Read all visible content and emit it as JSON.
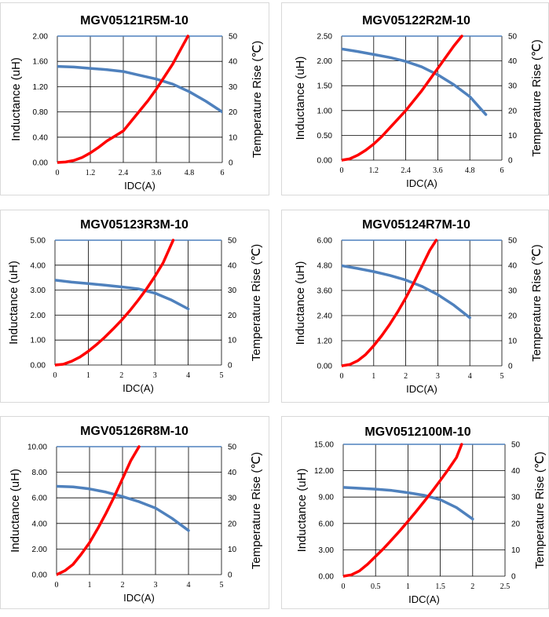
{
  "chart_data": [
    {
      "type": "line",
      "title": "MGV05121R5M-10",
      "xlabel": "IDC(A)",
      "ylabel": "Inductance (uH)",
      "y2label": "Temperature Rise (℃)",
      "xlim": [
        0,
        6
      ],
      "xticks": [
        "0",
        "1.2",
        "2.4",
        "3.6",
        "4.8",
        "6"
      ],
      "ylim": [
        0,
        2
      ],
      "yticks": [
        "0.00",
        "0.40",
        "0.80",
        "1.20",
        "1.60",
        "2.00"
      ],
      "y2lim": [
        0,
        50
      ],
      "y2ticks": [
        "0",
        "10",
        "20",
        "30",
        "40",
        "50"
      ],
      "series": [
        {
          "name": "Inductance",
          "axis": "left",
          "color": "#4f81bd",
          "x": [
            0,
            0.6,
            1.2,
            1.8,
            2.4,
            3.0,
            3.6,
            4.2,
            4.8,
            5.4,
            6.0
          ],
          "y": [
            1.52,
            1.51,
            1.49,
            1.47,
            1.44,
            1.38,
            1.32,
            1.24,
            1.12,
            0.97,
            0.8
          ]
        },
        {
          "name": "Temperature Rise",
          "axis": "right",
          "color": "#ff0000",
          "x": [
            0,
            0.3,
            0.6,
            0.9,
            1.2,
            1.5,
            1.8,
            2.1,
            2.4,
            2.7,
            3.0,
            3.3,
            3.6,
            3.9,
            4.2,
            4.5,
            4.75
          ],
          "y": [
            0,
            0.2,
            0.8,
            2.0,
            3.8,
            6.0,
            8.5,
            10.5,
            12.5,
            16.5,
            20.5,
            24.5,
            29.0,
            34.0,
            39.0,
            45.0,
            50.0
          ]
        }
      ]
    },
    {
      "type": "line",
      "title": "MGV05122R2M-10",
      "xlabel": "IDC(A)",
      "ylabel": "Inductance (uH)",
      "y2label": "Temperature Rise (℃)",
      "xlim": [
        0,
        6
      ],
      "xticks": [
        "0",
        "1.2",
        "2.4",
        "3.6",
        "4.8",
        "6"
      ],
      "ylim": [
        0,
        2.5
      ],
      "yticks": [
        "0.00",
        "0.50",
        "1.00",
        "1.50",
        "2.00",
        "2.50"
      ],
      "y2lim": [
        0,
        50
      ],
      "y2ticks": [
        "0",
        "10",
        "20",
        "30",
        "40",
        "50"
      ],
      "series": [
        {
          "name": "Inductance",
          "axis": "left",
          "color": "#4f81bd",
          "x": [
            0,
            0.6,
            1.2,
            1.8,
            2.4,
            3.0,
            3.6,
            4.2,
            4.8,
            5.4
          ],
          "y": [
            2.24,
            2.19,
            2.13,
            2.07,
            1.99,
            1.88,
            1.72,
            1.52,
            1.28,
            0.92
          ]
        },
        {
          "name": "Temperature Rise",
          "axis": "right",
          "color": "#ff0000",
          "x": [
            0,
            0.3,
            0.6,
            0.9,
            1.2,
            1.5,
            1.8,
            2.1,
            2.4,
            2.7,
            3.0,
            3.3,
            3.6,
            3.9,
            4.2,
            4.5
          ],
          "y": [
            0,
            0.5,
            2.0,
            4.0,
            6.5,
            9.5,
            13.0,
            16.5,
            20.0,
            24.0,
            28.0,
            32.5,
            37.0,
            41.5,
            46.0,
            50.0
          ]
        }
      ]
    },
    {
      "type": "line",
      "title": "MGV05123R3M-10",
      "xlabel": "IDC(A)",
      "ylabel": "Inductance (uH)",
      "y2label": "Temperature Rise (℃)",
      "xlim": [
        0,
        5
      ],
      "xticks": [
        "0",
        "1",
        "2",
        "3",
        "4",
        "5"
      ],
      "ylim": [
        0,
        5
      ],
      "yticks": [
        "0.00",
        "1.00",
        "2.00",
        "3.00",
        "4.00",
        "5.00"
      ],
      "y2lim": [
        0,
        50
      ],
      "y2ticks": [
        "0",
        "10",
        "20",
        "30",
        "40",
        "50"
      ],
      "series": [
        {
          "name": "Inductance",
          "axis": "left",
          "color": "#4f81bd",
          "x": [
            0,
            0.5,
            1.0,
            1.5,
            2.0,
            2.5,
            3.0,
            3.5,
            4.0
          ],
          "y": [
            3.4,
            3.32,
            3.26,
            3.2,
            3.13,
            3.05,
            2.88,
            2.6,
            2.25
          ]
        },
        {
          "name": "Temperature Rise",
          "axis": "right",
          "color": "#ff0000",
          "x": [
            0,
            0.25,
            0.5,
            0.75,
            1.0,
            1.25,
            1.5,
            1.75,
            2.0,
            2.25,
            2.5,
            2.75,
            3.0,
            3.25,
            3.55
          ],
          "y": [
            0,
            0.3,
            1.5,
            3.2,
            5.5,
            8.2,
            11.2,
            14.5,
            18.0,
            21.8,
            26.0,
            30.5,
            35.5,
            41.0,
            50.0
          ]
        }
      ]
    },
    {
      "type": "line",
      "title": "MGV05124R7M-10",
      "xlabel": "IDC(A)",
      "ylabel": "Inductance (uH)",
      "y2label": "Temperature Rise (℃)",
      "xlim": [
        0,
        5
      ],
      "xticks": [
        "0",
        "1",
        "2",
        "3",
        "4",
        "5"
      ],
      "ylim": [
        0,
        6
      ],
      "yticks": [
        "0.00",
        "1.20",
        "2.40",
        "3.60",
        "4.80",
        "6.00"
      ],
      "y2lim": [
        0,
        50
      ],
      "y2ticks": [
        "0",
        "10",
        "20",
        "30",
        "40",
        "50"
      ],
      "series": [
        {
          "name": "Inductance",
          "axis": "left",
          "color": "#4f81bd",
          "x": [
            0,
            0.5,
            1.0,
            1.5,
            2.0,
            2.5,
            3.0,
            3.5,
            4.0
          ],
          "y": [
            4.78,
            4.65,
            4.5,
            4.32,
            4.1,
            3.8,
            3.4,
            2.9,
            2.3
          ]
        },
        {
          "name": "Temperature Rise",
          "axis": "right",
          "color": "#ff0000",
          "x": [
            0,
            0.25,
            0.5,
            0.75,
            1.0,
            1.25,
            1.5,
            1.75,
            2.0,
            2.25,
            2.5,
            2.75,
            2.95
          ],
          "y": [
            0,
            0.5,
            2.0,
            4.5,
            8.0,
            12.0,
            16.5,
            21.5,
            27.0,
            33.0,
            39.5,
            46.0,
            50.0
          ]
        }
      ]
    },
    {
      "type": "line",
      "title": "MGV05126R8M-10",
      "xlabel": "IDC(A)",
      "ylabel": "Inductance (uH)",
      "y2label": "Temperature Rise (℃)",
      "xlim": [
        0,
        5
      ],
      "xticks": [
        "0",
        "1",
        "2",
        "3",
        "4",
        "5"
      ],
      "ylim": [
        0,
        10
      ],
      "yticks": [
        "0.00",
        "2.00",
        "4.00",
        "6.00",
        "8.00",
        "10.00"
      ],
      "y2lim": [
        0,
        50
      ],
      "y2ticks": [
        "0",
        "10",
        "20",
        "30",
        "40",
        "50"
      ],
      "series": [
        {
          "name": "Inductance",
          "axis": "left",
          "color": "#4f81bd",
          "x": [
            0,
            0.5,
            1.0,
            1.5,
            2.0,
            2.5,
            3.0,
            3.5,
            4.0
          ],
          "y": [
            6.9,
            6.85,
            6.7,
            6.45,
            6.1,
            5.7,
            5.2,
            4.4,
            3.45
          ]
        },
        {
          "name": "Temperature Rise",
          "axis": "right",
          "color": "#ff0000",
          "x": [
            0,
            0.25,
            0.5,
            0.75,
            1.0,
            1.25,
            1.5,
            1.75,
            2.0,
            2.25,
            2.5
          ],
          "y": [
            0,
            1.5,
            4.0,
            8.0,
            12.5,
            18.0,
            24.0,
            30.5,
            37.5,
            44.5,
            50.0
          ]
        }
      ]
    },
    {
      "type": "line",
      "title": "MGV0512100M-10",
      "xlabel": "IDC(A)",
      "ylabel": "Inductance (uH)",
      "y2label": "Temperature Rise (℃)",
      "xlim": [
        0,
        2.5
      ],
      "xticks": [
        "0",
        "0.5",
        "1",
        "1.5",
        "2",
        "2.5"
      ],
      "ylim": [
        0,
        15
      ],
      "yticks": [
        "0.00",
        "3.00",
        "6.00",
        "9.00",
        "12.00",
        "15.00"
      ],
      "y2lim": [
        0,
        50
      ],
      "y2ticks": [
        "0",
        "10",
        "20",
        "30",
        "40",
        "50"
      ],
      "series": [
        {
          "name": "Inductance",
          "axis": "left",
          "color": "#4f81bd",
          "x": [
            0,
            0.25,
            0.5,
            0.75,
            1.0,
            1.25,
            1.5,
            1.75,
            2.0
          ],
          "y": [
            10.1,
            10.0,
            9.9,
            9.75,
            9.5,
            9.2,
            8.7,
            7.8,
            6.5
          ]
        },
        {
          "name": "Temperature Rise",
          "axis": "right",
          "color": "#ff0000",
          "x": [
            0,
            0.125,
            0.25,
            0.375,
            0.5,
            0.625,
            0.75,
            0.875,
            1.0,
            1.125,
            1.25,
            1.375,
            1.5,
            1.625,
            1.75,
            1.83
          ],
          "y": [
            0,
            0.5,
            2.0,
            4.5,
            7.5,
            10.5,
            13.8,
            17.2,
            20.8,
            24.5,
            28.3,
            32.2,
            36.3,
            40.5,
            45.0,
            50.0
          ]
        }
      ]
    }
  ]
}
